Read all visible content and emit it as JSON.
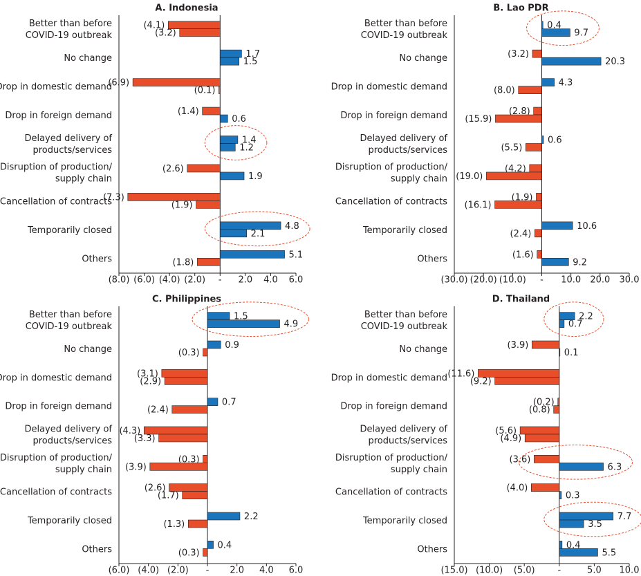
{
  "chart_data": [
    {
      "type": "bar",
      "orientation": "horizontal",
      "title": "A. Indonesia",
      "categories": [
        "Better than before\nCOVID-19 outbreak",
        "No change",
        "Drop in domestic demand",
        "Drop in foreign demand",
        "Delayed delivery of\nproducts/services",
        "Disruption of production/\nsupply chain",
        "Cancellation of contracts",
        "Temporarily closed",
        "Others"
      ],
      "series": [
        {
          "values": [
            -4.1,
            1.7,
            -6.9,
            -1.4,
            1.4,
            -2.6,
            -7.3,
            4.8,
            5.1
          ],
          "value_labels": [
            "(4.1)",
            "1.7",
            "(6.9)",
            "(1.4)",
            "1.4",
            "(2.6)",
            "(7.3)",
            "4.8",
            "5.1"
          ]
        },
        {
          "values": [
            -3.2,
            1.5,
            -0.1,
            0.6,
            1.2,
            1.9,
            -1.9,
            2.1,
            -1.8
          ],
          "value_labels": [
            "(3.2)",
            "1.5",
            "(0.1)",
            "0.6",
            "1.2",
            "1.9",
            "(1.9)",
            "2.1",
            "(1.8)"
          ]
        }
      ],
      "positive_color": "#1b75bc",
      "negative_color": "#e94e2b",
      "highlights": [
        4,
        7
      ],
      "xlim": [
        -8,
        6
      ],
      "xticks": [
        {
          "value": -8,
          "label": "(8.0)"
        },
        {
          "value": -6,
          "label": "(6.0)"
        },
        {
          "value": -4,
          "label": "(4.0)"
        },
        {
          "value": -2,
          "label": "(2.0)"
        },
        {
          "value": 0,
          "label": "-"
        },
        {
          "value": 2,
          "label": "2.0"
        },
        {
          "value": 4,
          "label": "4.0"
        },
        {
          "value": 6,
          "label": "6.0"
        }
      ]
    },
    {
      "type": "bar",
      "orientation": "horizontal",
      "title": "B. Lao PDR",
      "categories": [
        "Better than before\nCOVID-19 outbreak",
        "No change",
        "Drop in domestic demand",
        "Drop in foreign demand",
        "Delayed delivery of\nproducts/services",
        "Disruption of production/\nsupply chain",
        "Cancellation of contracts",
        "Temporarily closed",
        "Others"
      ],
      "series": [
        {
          "values": [
            0.4,
            -3.2,
            4.3,
            -2.8,
            0.6,
            -4.2,
            -1.9,
            10.6,
            -1.6
          ],
          "value_labels": [
            "0.4",
            "(3.2)",
            "4.3",
            "(2.8)",
            "0.6",
            "(4.2)",
            "(1.9)",
            "10.6",
            "(1.6)"
          ]
        },
        {
          "values": [
            9.7,
            20.3,
            -8.0,
            -15.9,
            -5.5,
            -19.0,
            -16.1,
            -2.4,
            9.2
          ],
          "value_labels": [
            "9.7",
            "20.3",
            "(8.0)",
            "(15.9)",
            "(5.5)",
            "(19.0)",
            "(16.1)",
            "(2.4)",
            "9.2"
          ]
        }
      ],
      "positive_color": "#1b75bc",
      "negative_color": "#e94e2b",
      "highlights": [
        0
      ],
      "xlim": [
        -30,
        30
      ],
      "xticks": [
        {
          "value": -30,
          "label": "(30.0)"
        },
        {
          "value": -20,
          "label": "(20.0)"
        },
        {
          "value": -10,
          "label": "(10.0)"
        },
        {
          "value": 0,
          "label": "-"
        },
        {
          "value": 10,
          "label": "10.0"
        },
        {
          "value": 20,
          "label": "20.0"
        },
        {
          "value": 30,
          "label": "30.0"
        }
      ]
    },
    {
      "type": "bar",
      "orientation": "horizontal",
      "title": "C. Philippines",
      "categories": [
        "Better than before\nCOVID-19 outbreak",
        "No change",
        "Drop in domestic demand",
        "Drop in foreign demand",
        "Delayed delivery of\nproducts/services",
        "Disruption of production/\nsupply chain",
        "Cancellation of contracts",
        "Temporarily closed",
        "Others"
      ],
      "series": [
        {
          "values": [
            1.5,
            0.9,
            -3.1,
            0.7,
            -4.3,
            -0.3,
            -2.6,
            2.2,
            0.4
          ],
          "value_labels": [
            "1.5",
            "0.9",
            "(3.1)",
            "0.7",
            "(4.3)",
            "(0.3)",
            "(2.6)",
            "2.2",
            "0.4"
          ]
        },
        {
          "values": [
            4.9,
            -0.3,
            -2.9,
            -2.4,
            -3.3,
            -3.9,
            -1.7,
            -1.3,
            -0.3
          ],
          "value_labels": [
            "4.9",
            "(0.3)",
            "(2.9)",
            "(2.4)",
            "(3.3)",
            "(3.9)",
            "(1.7)",
            "(1.3)",
            "(0.3)"
          ]
        }
      ],
      "positive_color": "#1b75bc",
      "negative_color": "#e94e2b",
      "highlights": [
        0
      ],
      "xlim": [
        -6,
        6
      ],
      "xticks": [
        {
          "value": -6,
          "label": "(6.0)"
        },
        {
          "value": -4,
          "label": "(4.0)"
        },
        {
          "value": -2,
          "label": "(2.0)"
        },
        {
          "value": 0,
          "label": "-"
        },
        {
          "value": 2,
          "label": "2.0"
        },
        {
          "value": 4,
          "label": "4.0"
        },
        {
          "value": 6,
          "label": "6.0"
        }
      ]
    },
    {
      "type": "bar",
      "orientation": "horizontal",
      "title": "D. Thailand",
      "categories": [
        "Better than before\nCOVID-19 outbreak",
        "No change",
        "Drop in domestic demand",
        "Drop in foreign demand",
        "Delayed delivery of\nproducts/services",
        "Disruption of production/\nsupply chain",
        "Cancellation of contracts",
        "Temporarily closed",
        "Others"
      ],
      "series": [
        {
          "values": [
            2.2,
            -3.9,
            -11.6,
            -0.2,
            -5.6,
            -3.6,
            -4.0,
            7.7,
            0.4
          ],
          "value_labels": [
            "2.2",
            "(3.9)",
            "(11.6)",
            "(0.2)",
            "(5.6)",
            "(3.6)",
            "(4.0)",
            "7.7",
            "0.4"
          ]
        },
        {
          "values": [
            0.7,
            0.1,
            -9.2,
            -0.8,
            -4.9,
            6.3,
            0.3,
            3.5,
            5.5
          ],
          "value_labels": [
            "0.7",
            "0.1",
            "(9.2)",
            "(0.8)",
            "(4.9)",
            "6.3",
            "0.3",
            "3.5",
            "5.5"
          ]
        }
      ],
      "positive_color": "#1b75bc",
      "negative_color": "#e94e2b",
      "highlights": [
        0,
        5,
        7
      ],
      "xlim": [
        -15,
        10
      ],
      "xticks": [
        {
          "value": -15,
          "label": "(15.0)"
        },
        {
          "value": -10,
          "label": "(10.0)"
        },
        {
          "value": -5,
          "label": "(5.0)"
        },
        {
          "value": 0,
          "label": "-"
        },
        {
          "value": 5,
          "label": "5.0"
        },
        {
          "value": 10,
          "label": "10.0"
        }
      ]
    }
  ]
}
